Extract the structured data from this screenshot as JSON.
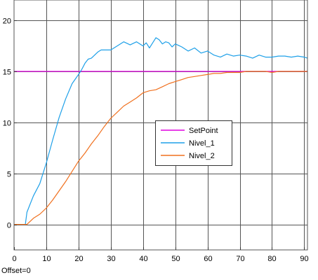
{
  "chart_data": {
    "type": "line",
    "xlim": [
      0,
      91
    ],
    "ylim": [
      -2.5,
      22
    ],
    "x_ticks": [
      0,
      10,
      20,
      30,
      40,
      50,
      60,
      70,
      80,
      90
    ],
    "y_ticks": [
      0,
      5,
      10,
      15,
      20
    ],
    "grid": true,
    "legend_position": "center-right",
    "series": [
      {
        "name": "SetPoint",
        "color": "#e000e0",
        "x": [
          0,
          91
        ],
        "y": [
          15,
          15
        ]
      },
      {
        "name": "Nivel_1",
        "color": "#1ea0e8",
        "x": [
          0,
          3.5,
          4,
          5,
          6,
          8,
          10,
          12,
          14,
          16,
          18,
          20,
          21,
          22,
          23,
          24,
          25,
          26,
          27,
          28,
          30,
          32,
          34,
          36,
          38,
          40,
          41,
          42,
          43,
          44,
          45,
          46,
          47,
          48,
          49,
          50,
          52,
          54,
          56,
          58,
          60,
          62,
          64,
          66,
          68,
          70,
          72,
          74,
          76,
          78,
          80,
          82,
          84,
          86,
          88,
          90,
          91
        ],
        "y": [
          0,
          0,
          1.2,
          2.0,
          2.8,
          4.0,
          6.0,
          8.3,
          10.5,
          12.3,
          13.8,
          14.7,
          15.2,
          15.8,
          16.2,
          16.3,
          16.6,
          16.9,
          17.1,
          17.1,
          17.1,
          17.5,
          17.9,
          17.6,
          17.9,
          17.5,
          17.8,
          17.3,
          17.8,
          18.3,
          18.1,
          17.7,
          17.9,
          17.8,
          17.4,
          17.7,
          17.4,
          17.0,
          17.3,
          16.8,
          17.0,
          16.6,
          16.4,
          16.7,
          16.5,
          16.6,
          16.5,
          16.3,
          16.6,
          16.4,
          16.4,
          16.5,
          16.5,
          16.4,
          16.5,
          16.4,
          16.3
        ]
      },
      {
        "name": "Nivel_2",
        "color": "#f0701e",
        "x": [
          0,
          4,
          5,
          6,
          8,
          10,
          12,
          14,
          16,
          18,
          20,
          22,
          24,
          26,
          28,
          30,
          32,
          34,
          36,
          38,
          40,
          42,
          44,
          46,
          48,
          50,
          52,
          54,
          56,
          58,
          60,
          62,
          64,
          66,
          68,
          70,
          72,
          74,
          76,
          78,
          80,
          82,
          84,
          86,
          88,
          90,
          91
        ],
        "y": [
          0,
          0,
          0.3,
          0.6,
          1.0,
          1.6,
          2.4,
          3.3,
          4.2,
          5.2,
          6.2,
          7.0,
          7.9,
          8.7,
          9.6,
          10.4,
          11.0,
          11.6,
          12.0,
          12.4,
          12.9,
          13.1,
          13.2,
          13.5,
          13.8,
          14.0,
          14.2,
          14.4,
          14.5,
          14.6,
          14.7,
          14.8,
          14.8,
          14.9,
          14.9,
          14.9,
          15.0,
          15.0,
          15.0,
          15.0,
          14.9,
          15.0,
          15.0,
          15.0,
          15.0,
          15.0,
          15.0
        ]
      }
    ]
  },
  "footer": {
    "offset_text": "Offset=0"
  }
}
